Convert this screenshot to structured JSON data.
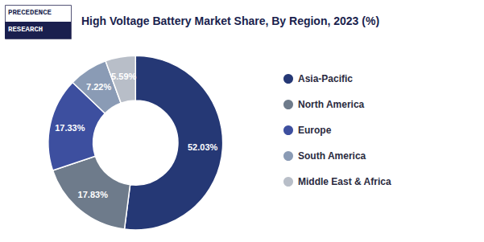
{
  "chart_data": {
    "type": "pie",
    "title": "High Voltage Battery Market Share, By Region, 2023 (%)",
    "categories": [
      "Asia-Pacific",
      "North America",
      "Europe",
      "South America",
      "Middle East & Africa"
    ],
    "values": [
      52.03,
      17.83,
      17.33,
      7.22,
      5.59
    ],
    "value_labels": [
      "52.03%",
      "17.83%",
      "17.33%",
      "7.22%",
      "5.59%"
    ],
    "colors": [
      "#253875",
      "#6e7b8b",
      "#3d4f9f",
      "#8a9bb5",
      "#b8bec8"
    ],
    "data_labels": true,
    "legend": "right",
    "annotations": [
      "PRECEDENCE",
      "RESEARCH"
    ]
  }
}
